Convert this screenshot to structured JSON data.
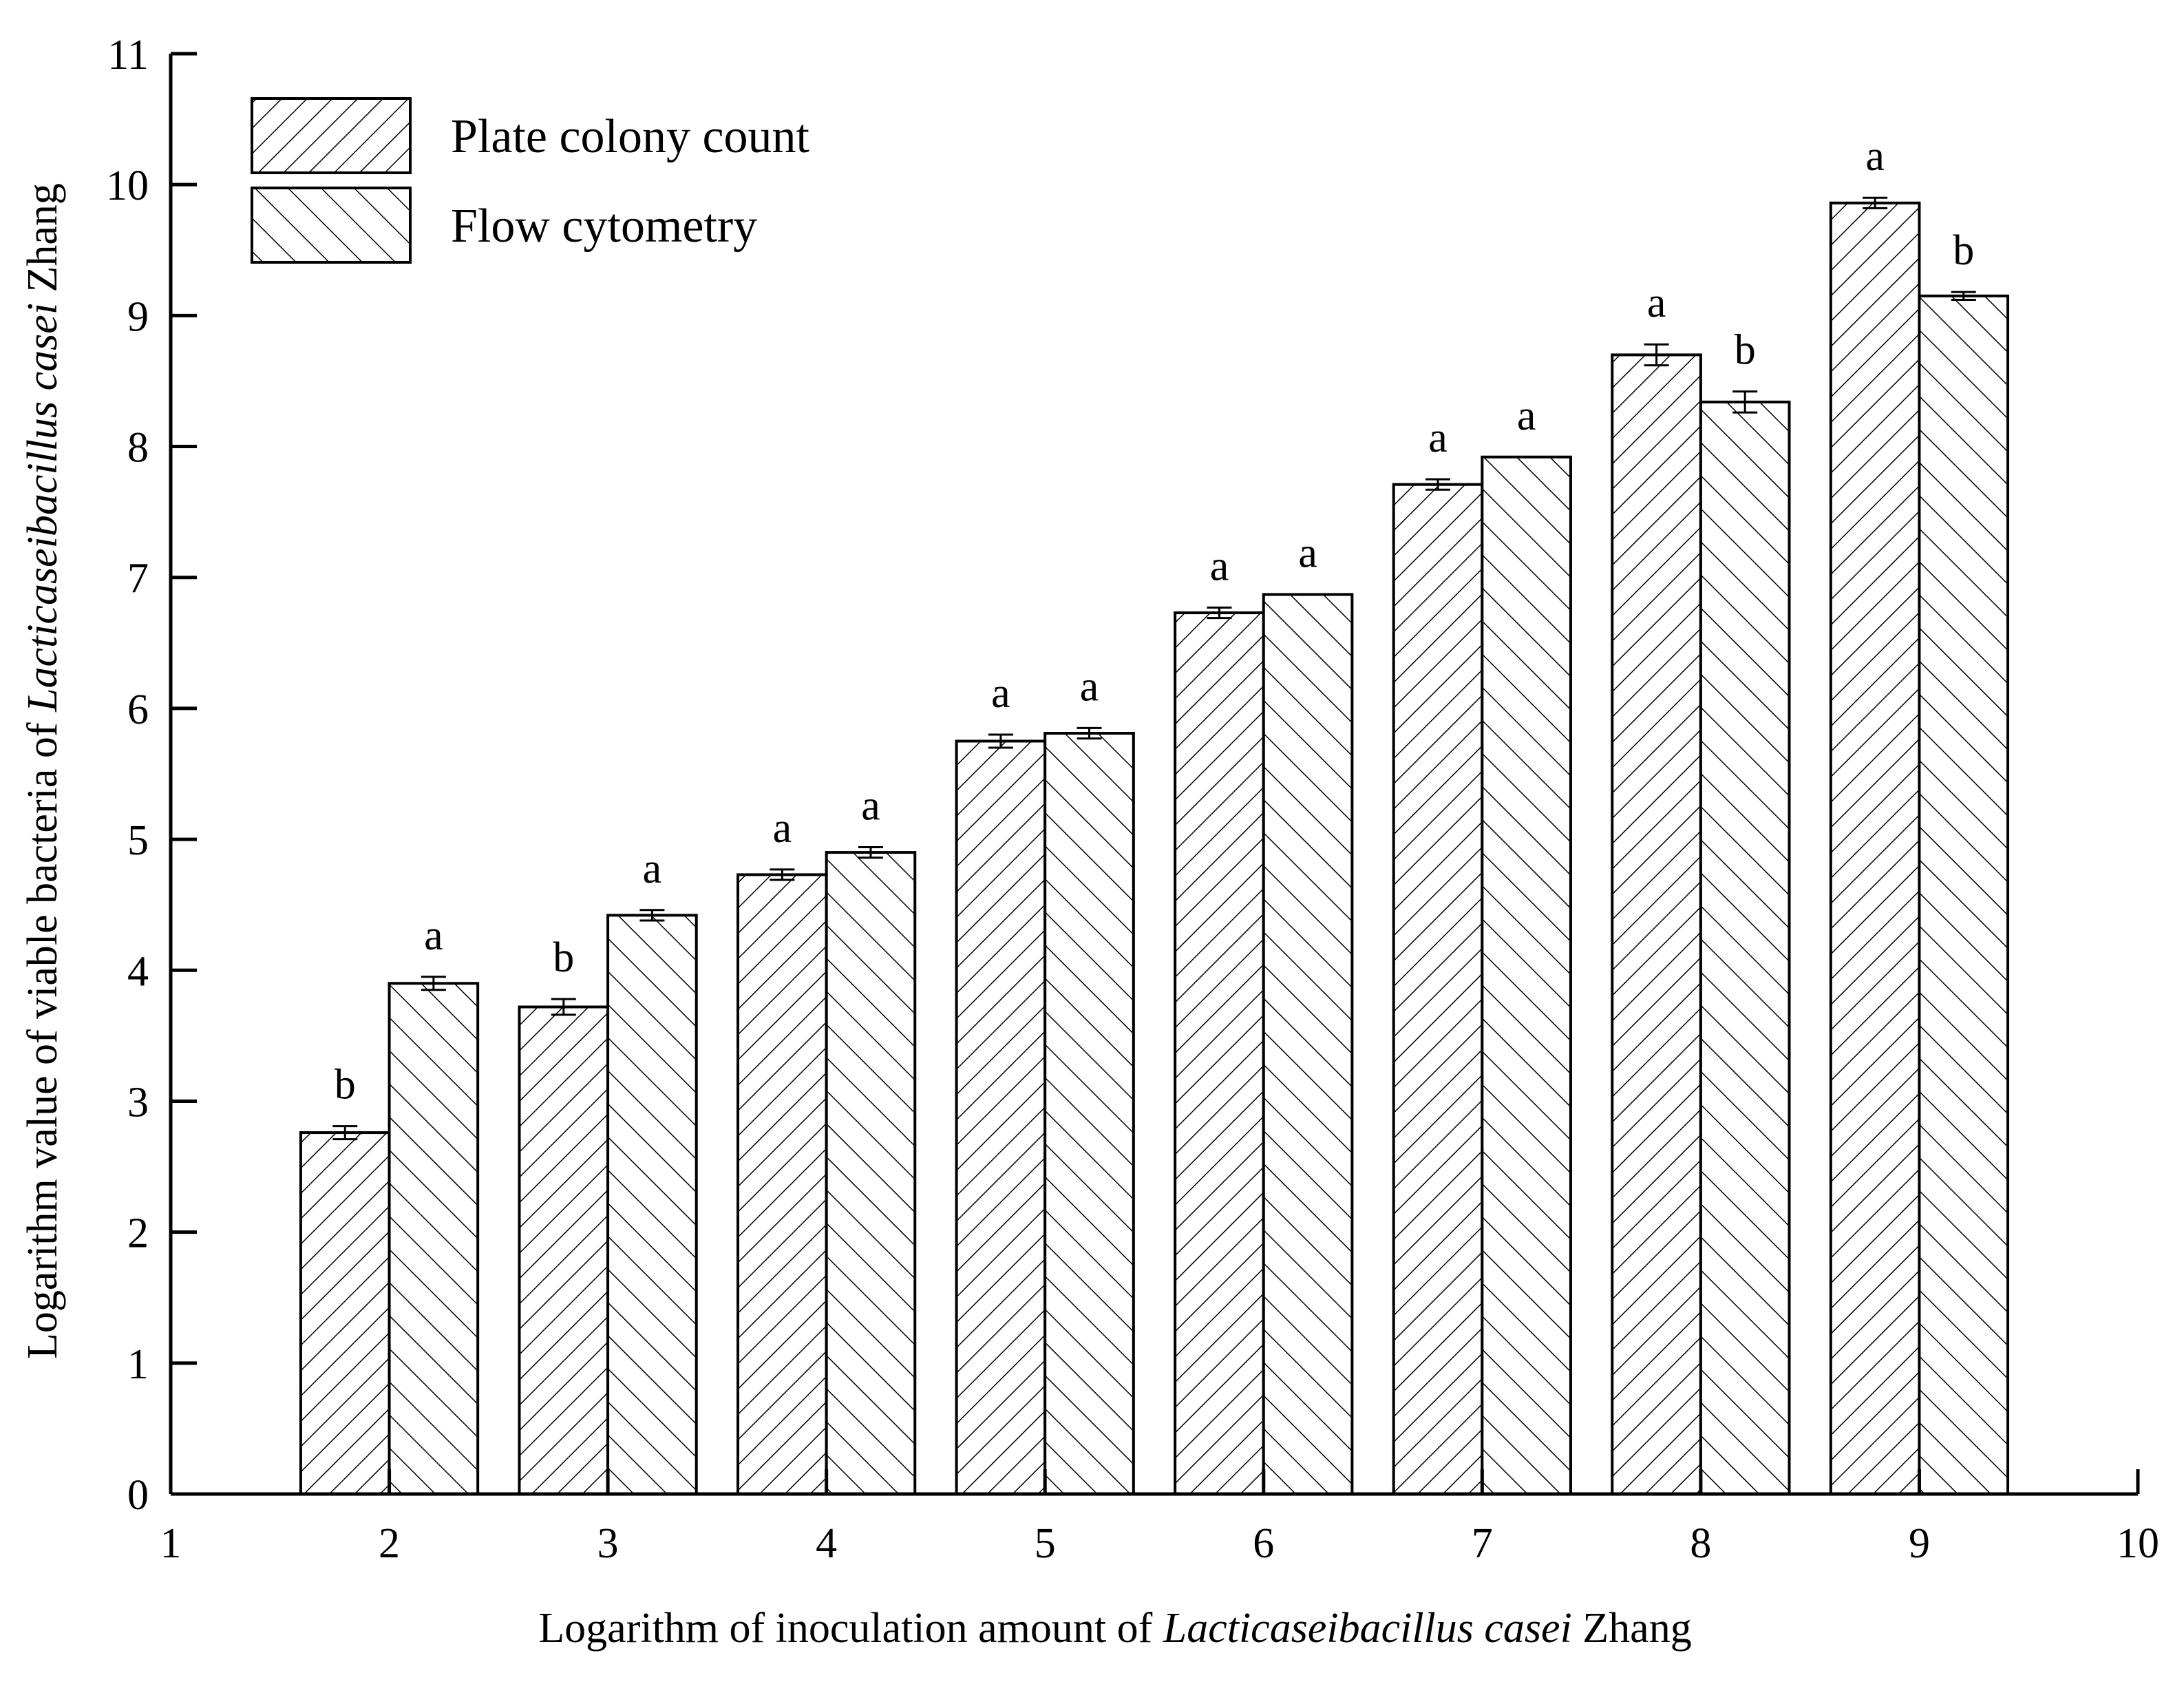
{
  "chart_data": {
    "type": "bar",
    "xlabel": {
      "prefix": "Logarithm of inoculation amount of ",
      "italic": "Lacticaseibacillus casei",
      "suffix": " Zhang"
    },
    "ylabel": {
      "prefix": "Logarithm value of viable bacteria of  ",
      "italic": "Lacticaseibacillus casei",
      "suffix": " Zhang"
    },
    "xlim": [
      1,
      10
    ],
    "ylim": [
      0,
      11
    ],
    "x_ticks": [
      1,
      2,
      3,
      4,
      5,
      6,
      7,
      8,
      9,
      10
    ],
    "y_ticks": [
      0,
      1,
      2,
      3,
      4,
      5,
      6,
      7,
      8,
      9,
      10,
      11
    ],
    "categories": [
      2,
      3,
      4,
      5,
      6,
      7,
      8,
      9
    ],
    "grid": false,
    "legend_position": "top-left",
    "series": [
      {
        "name": "Plate colony count",
        "hatch": "forward",
        "values": [
          2.76,
          3.72,
          4.73,
          5.75,
          6.73,
          7.71,
          8.7,
          9.86
        ],
        "errors": [
          0.05,
          0.06,
          0.04,
          0.05,
          0.04,
          0.04,
          0.08,
          0.04
        ],
        "labels": [
          "b",
          "b",
          "a",
          "a",
          "a",
          "a",
          "a",
          "a"
        ]
      },
      {
        "name": "Flow cytometry",
        "hatch": "backward",
        "values": [
          3.9,
          4.42,
          4.9,
          5.81,
          6.87,
          7.92,
          8.34,
          9.15
        ],
        "errors": [
          0.05,
          0.04,
          0.04,
          0.04,
          0,
          0,
          0.08,
          0.03
        ],
        "labels": [
          "a",
          "a",
          "a",
          "a",
          "a",
          "a",
          "b",
          "b"
        ]
      }
    ]
  }
}
